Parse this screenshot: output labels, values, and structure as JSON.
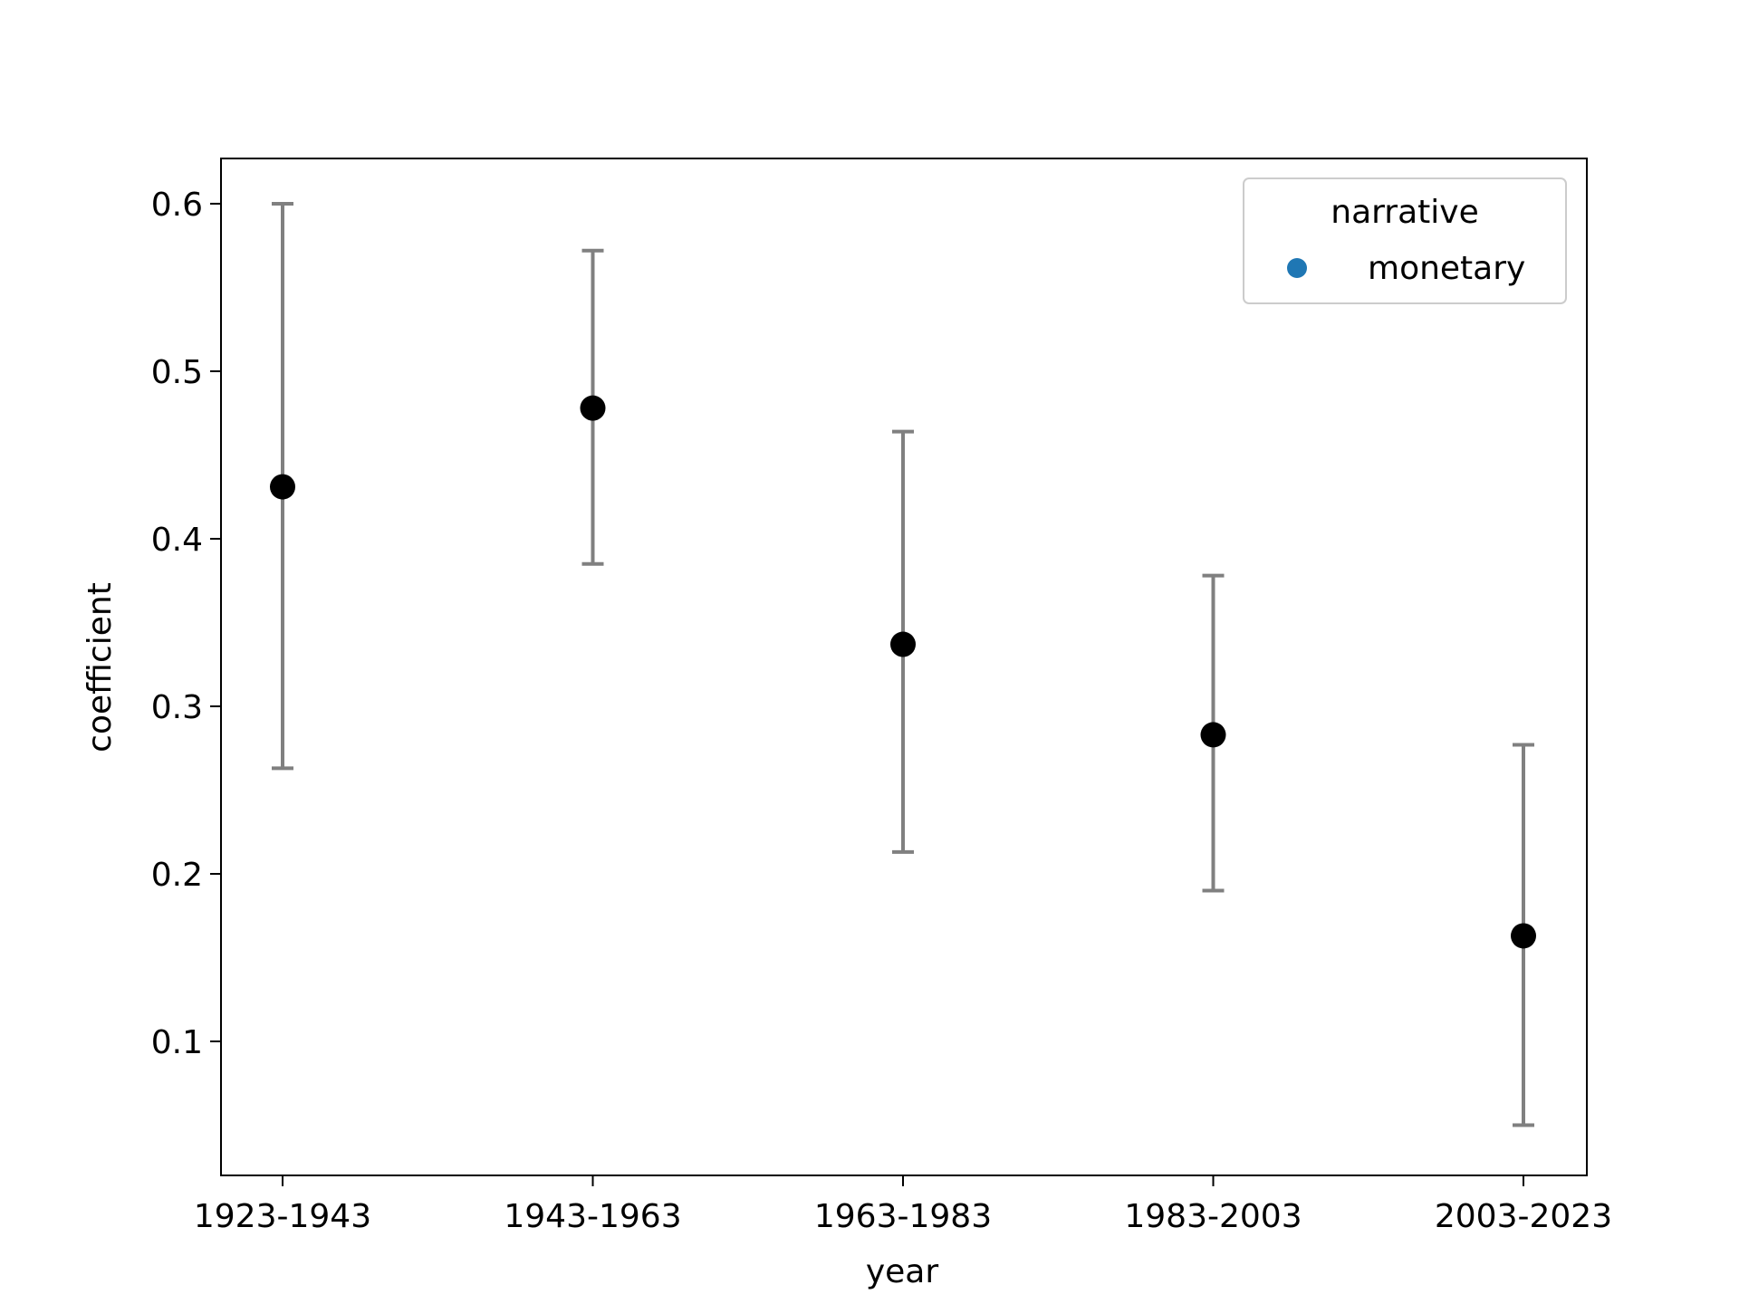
{
  "chart_data": {
    "type": "scatter",
    "xlabel": "year",
    "ylabel": "coefficient",
    "categories": [
      "1923-1943",
      "1943-1963",
      "1963-1983",
      "1983-2003",
      "2003-2023"
    ],
    "series": [
      {
        "name": "monetary",
        "values": [
          0.431,
          0.478,
          0.337,
          0.283,
          0.163
        ],
        "lower": [
          0.263,
          0.385,
          0.213,
          0.19,
          0.05
        ],
        "upper": [
          0.6,
          0.572,
          0.464,
          0.378,
          0.277
        ]
      }
    ],
    "ylim": [
      0.02,
      0.627
    ],
    "yticks": [
      "0.1",
      "0.2",
      "0.3",
      "0.4",
      "0.5",
      "0.6"
    ],
    "grid": false,
    "legend": {
      "title": "narrative",
      "entries": [
        "monetary"
      ],
      "placement": "top-right"
    },
    "colors": {
      "point": "#000000",
      "errorbar": "#808080",
      "legend_marker": "#1f77b4",
      "legend_border": "#cccccc"
    }
  }
}
